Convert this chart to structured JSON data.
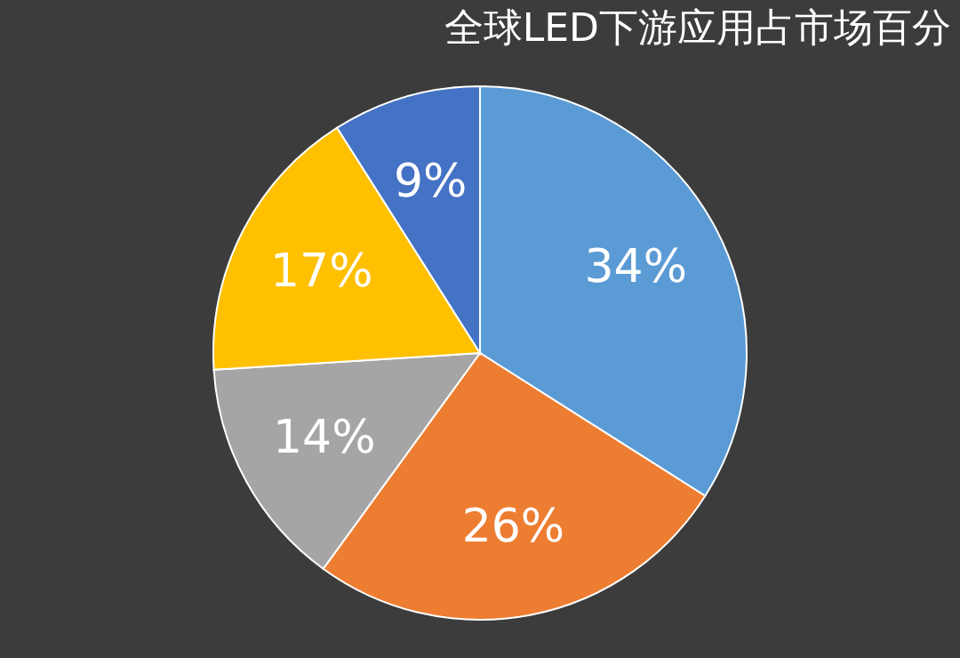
{
  "chart_data": {
    "type": "pie",
    "title": "全球LED下游应用占市场百分",
    "categories": [
      null,
      null,
      null,
      null,
      null
    ],
    "values": [
      34,
      26,
      14,
      17,
      9
    ],
    "colors": [
      "#5b9bd5",
      "#ed7d31",
      "#a5a5a5",
      "#ffc000",
      "#4472c4"
    ],
    "value_labels": [
      "34%",
      "26%",
      "14%",
      "17%",
      "9%"
    ],
    "legend": false
  }
}
